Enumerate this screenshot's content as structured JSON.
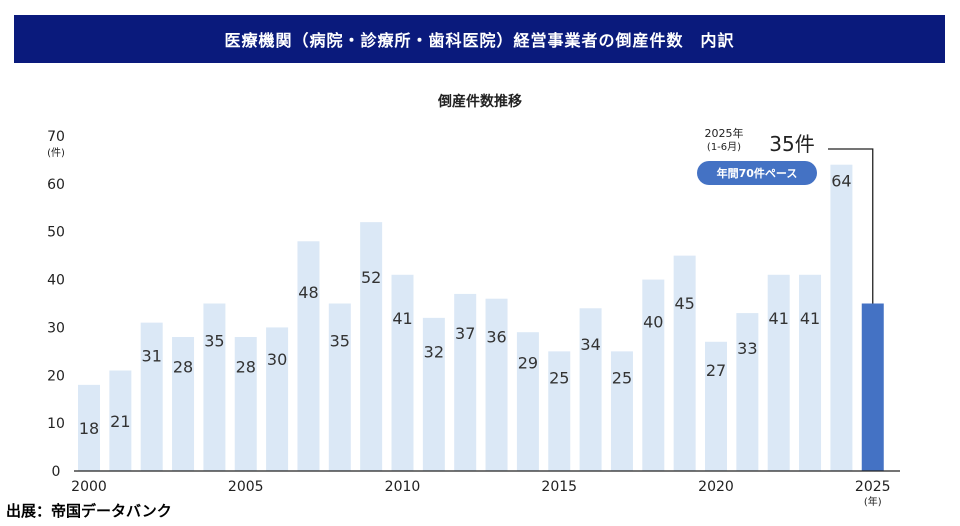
{
  "header": {
    "banner_title": "医療機関（病院・診療所・歯科医院）経営事業者の倒産件数　内訳"
  },
  "chart_data": {
    "type": "bar",
    "title": "倒産件数推移",
    "ylabel_unit": "(件)",
    "xlabel_unit": "(年)",
    "ylim": [
      0,
      70
    ],
    "yticks": [
      0,
      10,
      20,
      30,
      40,
      50,
      60,
      70
    ],
    "x_tick_labels": [
      "2000",
      "2005",
      "2010",
      "2015",
      "2020",
      "2025"
    ],
    "categories": [
      "2000",
      "2001",
      "2002",
      "2003",
      "2004",
      "2005",
      "2006",
      "2007",
      "2008",
      "2009",
      "2010",
      "2011",
      "2012",
      "2013",
      "2014",
      "2015",
      "2016",
      "2017",
      "2018",
      "2019",
      "2020",
      "2021",
      "2022",
      "2023",
      "2024",
      "2025"
    ],
    "values": [
      18,
      21,
      31,
      28,
      35,
      28,
      30,
      48,
      35,
      52,
      41,
      32,
      37,
      36,
      29,
      25,
      34,
      25,
      40,
      45,
      27,
      33,
      41,
      41,
      64,
      35
    ],
    "highlight_index": 25,
    "colors": {
      "bar": "#dbe8f6",
      "highlight": "#4472c4",
      "badge": "#4472c4"
    },
    "annotation": {
      "period_line1": "2025年",
      "period_line2": "(1-6月)",
      "value": "35件",
      "badge": "年間70件ペース"
    }
  },
  "footer": {
    "source": "出展：帝国データバンク"
  }
}
